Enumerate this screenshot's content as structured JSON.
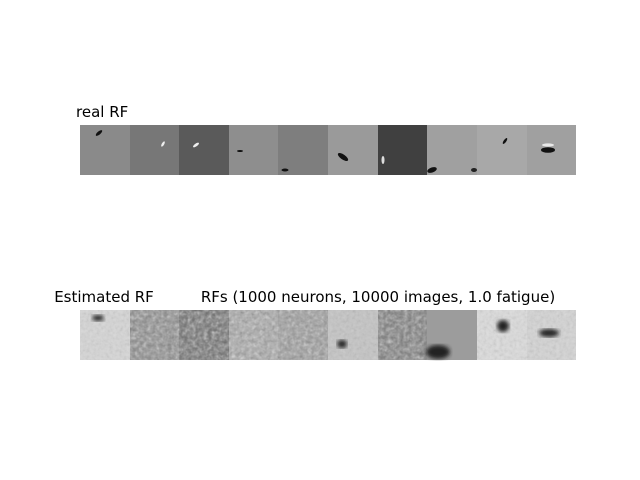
{
  "top_row": {
    "title": "real RF"
  },
  "bottom_row": {
    "title": "Estimated RF",
    "subtitle": "RFs (1000 neurons, 10000 images, 1.0 fatigue)"
  }
}
